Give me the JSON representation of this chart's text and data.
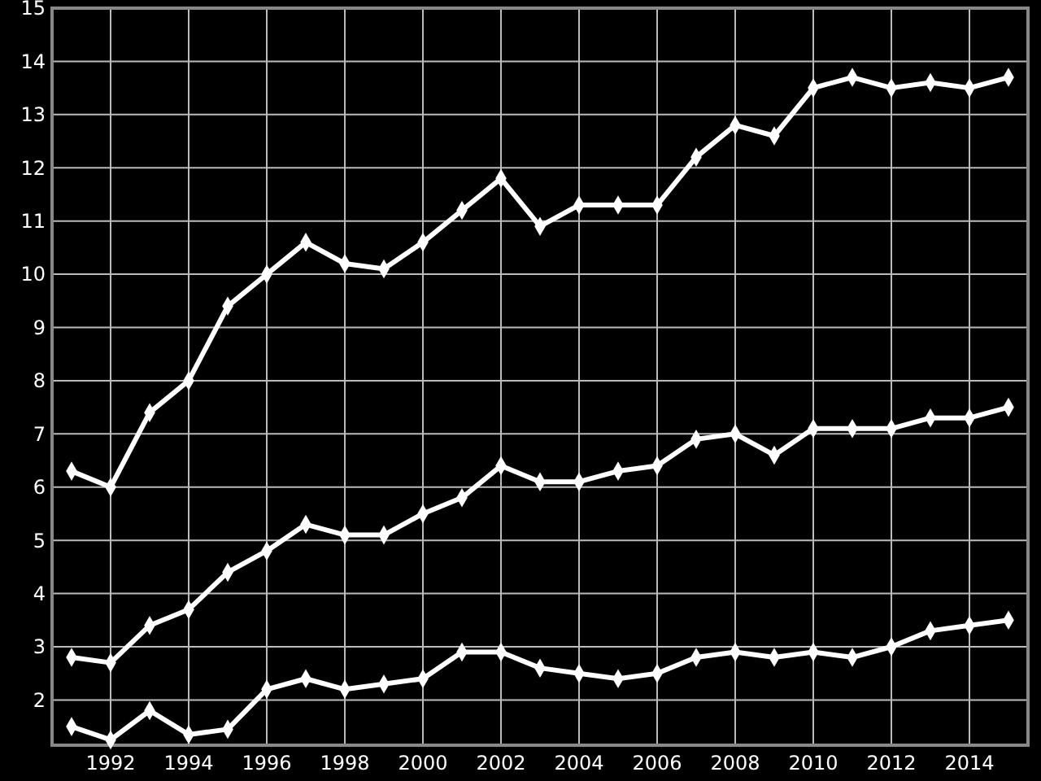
{
  "chart_data": {
    "type": "line",
    "x": [
      1991,
      1992,
      1993,
      1994,
      1995,
      1996,
      1997,
      1998,
      1999,
      2000,
      2001,
      2002,
      2003,
      2004,
      2005,
      2006,
      2007,
      2008,
      2009,
      2010,
      2011,
      2012,
      2013,
      2014,
      2015
    ],
    "series": [
      {
        "color": "#ffffff",
        "values": [
          6.3,
          6.0,
          7.4,
          8.0,
          9.4,
          10.0,
          10.6,
          10.2,
          10.1,
          10.6,
          11.2,
          11.8,
          10.9,
          11.3,
          11.3,
          11.3,
          12.2,
          12.8,
          12.6,
          13.5,
          13.7,
          13.5,
          13.6,
          13.5,
          13.7
        ]
      },
      {
        "color": "#ffffff",
        "values": [
          2.8,
          2.7,
          3.4,
          3.7,
          4.4,
          4.8,
          5.3,
          5.1,
          5.1,
          5.5,
          5.8,
          6.4,
          6.1,
          6.1,
          6.3,
          6.4,
          6.9,
          7.0,
          6.6,
          7.1,
          7.1,
          7.1,
          7.3,
          7.3,
          7.5
        ]
      },
      {
        "color": "#ffffff",
        "values": [
          1.5,
          1.25,
          1.8,
          1.35,
          1.45,
          2.2,
          2.4,
          2.2,
          2.3,
          2.4,
          2.9,
          2.9,
          2.6,
          2.5,
          2.4,
          2.5,
          2.8,
          2.9,
          2.8,
          2.9,
          2.8,
          3.0,
          3.3,
          3.4,
          3.5
        ]
      }
    ],
    "xlim": [
      1990.5,
      2015.5
    ],
    "xticks": [
      1992,
      1994,
      1996,
      1998,
      2000,
      2002,
      2004,
      2006,
      2008,
      2010,
      2012,
      2014
    ],
    "ylim": [
      1.15,
      15
    ],
    "yticks": [
      2,
      3,
      4,
      5,
      6,
      7,
      8,
      9,
      10,
      11,
      12,
      13,
      14,
      15
    ],
    "grid": true,
    "marker": "diamond",
    "line_style": "solid"
  }
}
